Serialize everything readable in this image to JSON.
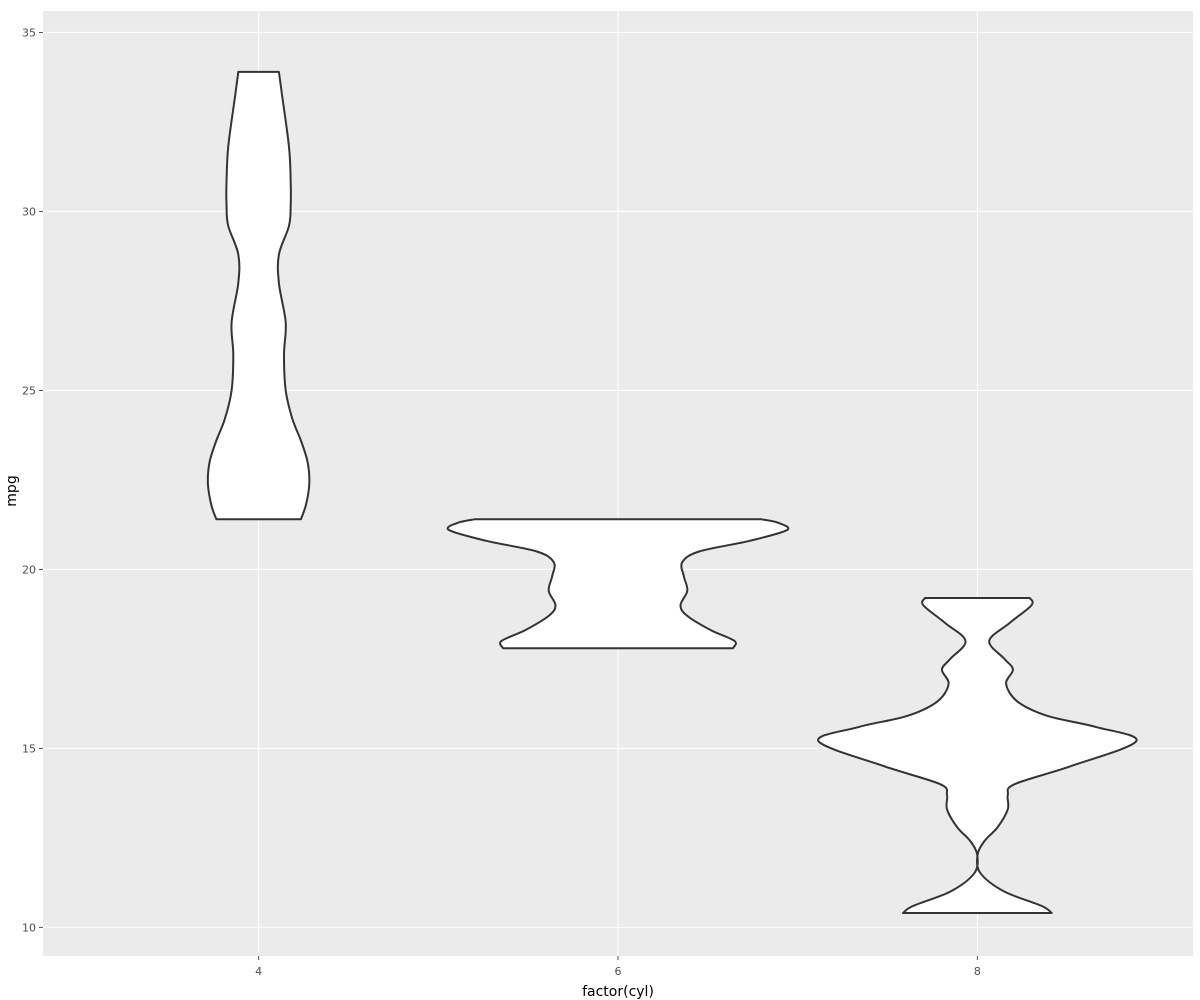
{
  "chart_data": {
    "type": "violin",
    "xlabel": "factor(cyl)",
    "ylabel": "mpg",
    "x_ticks": [
      4,
      6,
      8
    ],
    "xlim": [
      2.8,
      9.2
    ],
    "ylim": [
      9.2,
      35.6
    ],
    "y_ticks": [
      10,
      15,
      20,
      25,
      30,
      35
    ],
    "grid": true,
    "colors": {
      "panel": "#ebebeb",
      "grid": "#ffffff",
      "fill": "#ffffff",
      "outline": "#333333"
    },
    "groups": [
      {
        "x": 4,
        "profile": [
          [
            21.4,
            0.25
          ],
          [
            21.8,
            0.28
          ],
          [
            22.4,
            0.3
          ],
          [
            23.0,
            0.29
          ],
          [
            23.6,
            0.25
          ],
          [
            24.2,
            0.2
          ],
          [
            25.0,
            0.16
          ],
          [
            26.0,
            0.15
          ],
          [
            26.9,
            0.16
          ],
          [
            28.0,
            0.12
          ],
          [
            28.8,
            0.12
          ],
          [
            29.6,
            0.18
          ],
          [
            30.2,
            0.19
          ],
          [
            30.8,
            0.19
          ],
          [
            31.8,
            0.18
          ],
          [
            33.2,
            0.14
          ],
          [
            33.9,
            0.12
          ]
        ]
      },
      {
        "x": 6,
        "profile": [
          [
            17.8,
            0.68
          ],
          [
            18.0,
            0.69
          ],
          [
            18.3,
            0.55
          ],
          [
            18.7,
            0.41
          ],
          [
            19.0,
            0.37
          ],
          [
            19.4,
            0.41
          ],
          [
            19.8,
            0.39
          ],
          [
            20.2,
            0.38
          ],
          [
            20.5,
            0.48
          ],
          [
            20.8,
            0.78
          ],
          [
            21.1,
            1.0
          ],
          [
            21.3,
            0.95
          ],
          [
            21.4,
            0.85
          ]
        ]
      },
      {
        "x": 8,
        "profile": [
          [
            10.4,
            0.44
          ],
          [
            10.6,
            0.38
          ],
          [
            11.0,
            0.16
          ],
          [
            11.5,
            0.02
          ],
          [
            12.0,
            0.0
          ],
          [
            12.4,
            0.04
          ],
          [
            12.8,
            0.12
          ],
          [
            13.3,
            0.18
          ],
          [
            13.7,
            0.18
          ],
          [
            14.0,
            0.22
          ],
          [
            14.5,
            0.55
          ],
          [
            15.2,
            0.94
          ],
          [
            15.6,
            0.7
          ],
          [
            15.9,
            0.42
          ],
          [
            16.3,
            0.24
          ],
          [
            16.8,
            0.17
          ],
          [
            17.2,
            0.21
          ],
          [
            17.5,
            0.16
          ],
          [
            18.0,
            0.07
          ],
          [
            18.5,
            0.19
          ],
          [
            19.0,
            0.32
          ],
          [
            19.2,
            0.31
          ]
        ]
      }
    ]
  }
}
